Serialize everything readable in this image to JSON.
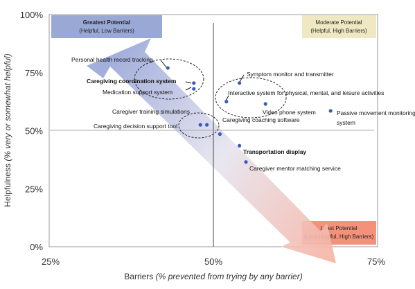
{
  "chart_data": {
    "type": "scatter",
    "xlabel_main": "Barriers",
    "xlabel_paren": "(% prevented from trying by any barrier)",
    "ylabel_main": "Helpfulness",
    "ylabel_paren": "(% very or somewhat helpful)",
    "xlim": [
      25,
      75
    ],
    "ylim": [
      0,
      100
    ],
    "x_ticks": [
      "25%",
      "50%",
      "75%"
    ],
    "y_ticks": [
      "0%",
      "25%",
      "50%",
      "75%",
      "100%"
    ],
    "quadrants": {
      "top_left": {
        "title": "Greatest Potential",
        "subtitle": "(Helpful, Low Barriers)",
        "color": "#9aa8d6"
      },
      "top_right": {
        "title": "Moderate Potential",
        "subtitle": "(Helpful, High Barriers)",
        "color": "#efe8c2"
      },
      "bottom_right": {
        "title": "Least Potential",
        "subtitle": "(Less Helpful, High Barriers)",
        "color": "#f4917a"
      }
    },
    "arrow_colors": {
      "start": "#98a6d8",
      "mid": "#e6e4ef",
      "end": "#f6b3a3"
    },
    "point_color": "#3a5cb8",
    "points": [
      {
        "label": "Personal health record tracking",
        "x": 43,
        "y": 77,
        "bold": false
      },
      {
        "label": "Caregiving coordination system",
        "x": 47,
        "y": 70.5,
        "bold": true
      },
      {
        "label": "Medication support system",
        "x": 47,
        "y": 68,
        "bold": false
      },
      {
        "label": "Caregiver training simulations",
        "x": 49,
        "y": 52.5,
        "bold": false
      },
      {
        "label": "Caregiving decision support tool",
        "x": 48,
        "y": 52.5,
        "bold": false
      },
      {
        "label": "Symptom monitor and transmitter",
        "x": 54,
        "y": 70.5,
        "bold": false
      },
      {
        "label": "Interactive system for physical, mental, and leisure activities",
        "x": 52,
        "y": 62.5,
        "bold": false
      },
      {
        "label": "Video phone system",
        "x": 58,
        "y": 61.5,
        "bold": false
      },
      {
        "label": "Passive movement monitoring system",
        "x": 68,
        "y": 58.5,
        "bold": false
      },
      {
        "label": "Caregiving coaching software",
        "x": 51,
        "y": 48.5,
        "bold": false
      },
      {
        "label": "Transportation display",
        "x": 54,
        "y": 43.5,
        "bold": true
      },
      {
        "label": "Caregiver mentor matching service",
        "x": 55,
        "y": 36.5,
        "bold": false
      }
    ]
  }
}
